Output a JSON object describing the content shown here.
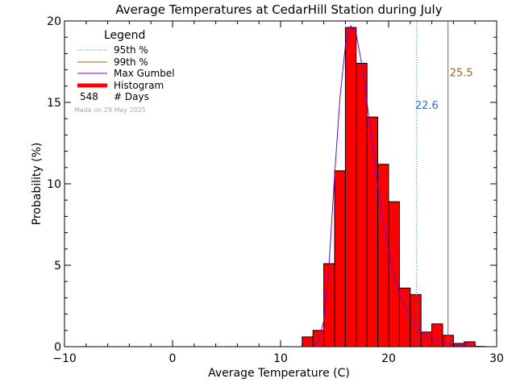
{
  "chart_data": {
    "type": "bar",
    "title": "Average Temperatures at CedarHill Station during July",
    "xlabel": "Average Temperature (C)",
    "ylabel": "Probability (%)",
    "xlim": [
      -10,
      30
    ],
    "ylim": [
      0,
      20
    ],
    "x_ticks": [
      -10,
      0,
      10,
      20,
      30
    ],
    "y_ticks": [
      0,
      5,
      10,
      15,
      20
    ],
    "x_tick_labels": [
      "−10",
      "0",
      "10",
      "20",
      "30"
    ],
    "y_tick_labels": [
      "0",
      "5",
      "10",
      "15",
      "20"
    ],
    "histogram": {
      "bin_width": 1,
      "bins_start": [
        12,
        13,
        14,
        15,
        16,
        17,
        18,
        19,
        20,
        21,
        22,
        23,
        24,
        25,
        26,
        27
      ],
      "values": [
        0.6,
        1.0,
        5.1,
        10.8,
        19.6,
        17.4,
        14.1,
        11.2,
        8.9,
        3.6,
        3.2,
        0.9,
        1.4,
        0.7,
        0.2,
        0.3
      ]
    },
    "gumbel_curve": {
      "x": [
        13.0,
        13.5,
        14.0,
        14.5,
        15.0,
        15.5,
        16.0,
        16.5,
        17.0,
        17.5,
        18.0,
        18.5,
        19.0,
        19.5,
        20.0,
        20.5,
        21.0,
        21.5,
        22.0,
        23.0,
        24.0,
        25.0,
        26.0,
        27.0,
        28.0,
        29.0
      ],
      "y": [
        0.0,
        0.3,
        1.6,
        5.2,
        10.5,
        15.3,
        18.5,
        19.7,
        19.2,
        17.4,
        15.0,
        12.4,
        9.9,
        7.7,
        5.9,
        4.4,
        3.3,
        2.4,
        1.8,
        0.9,
        0.5,
        0.25,
        0.12,
        0.06,
        0.03,
        0.01
      ],
      "color": "#7700cc"
    },
    "percentile_95": {
      "value": 22.6,
      "label": "22.6",
      "color": "#1f77c4"
    },
    "percentile_99": {
      "value": 25.5,
      "label": "25.5",
      "color": "#a0642a"
    },
    "legend": {
      "title": "Legend",
      "placement": "top-left",
      "items": [
        {
          "label": "95th %",
          "style": "dotted",
          "color": "#1f77c4"
        },
        {
          "label": "99th %",
          "style": "solid",
          "color": "#a0642a"
        },
        {
          "label": "Max Gumbel",
          "style": "solid",
          "color": "#7700cc"
        },
        {
          "label": "Histogram",
          "style": "thick",
          "color": "#ff0000"
        }
      ],
      "days_count": "548",
      "days_label": "# Days"
    },
    "made_on": "Made on 29 May 2025",
    "bar_color": "#ff0000"
  }
}
